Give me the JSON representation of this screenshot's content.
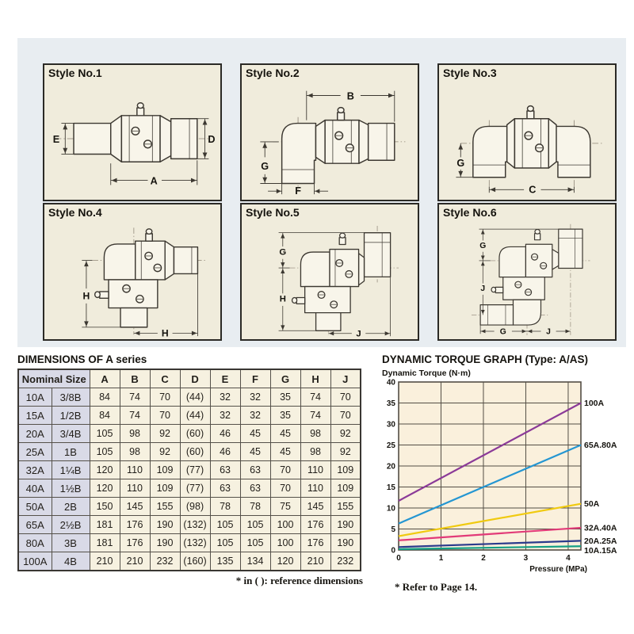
{
  "styles": [
    {
      "label": "Style No.1",
      "dim_left": "E",
      "dim_right": "D",
      "dim_bottom": "A"
    },
    {
      "label": "Style No.2",
      "dim_top": "B",
      "dim_left": "G",
      "dim_bottom": "F"
    },
    {
      "label": "Style No.3",
      "dim_left": "G",
      "dim_bottom": "C"
    },
    {
      "label": "Style No.4",
      "dim_left": "H",
      "dim_bottom": "H"
    },
    {
      "label": "Style No.5",
      "dim_top": "G",
      "dim_left": "H",
      "dim_bottom": "J"
    },
    {
      "label": "Style No.6",
      "dim_top": "G",
      "dim_left": "J",
      "dim_bottom_left": "G",
      "dim_bottom_right": "J"
    }
  ],
  "table": {
    "title": "DIMENSIONS OF A series",
    "nominal_size_header": "Nominal Size",
    "columns": [
      "A",
      "B",
      "C",
      "D",
      "E",
      "F",
      "G",
      "H",
      "J"
    ],
    "rows": [
      [
        "10A",
        "3/8B",
        "84",
        "74",
        "70",
        "(44)",
        "32",
        "32",
        "35",
        "74",
        "70"
      ],
      [
        "15A",
        "1/2B",
        "84",
        "74",
        "70",
        "(44)",
        "32",
        "32",
        "35",
        "74",
        "70"
      ],
      [
        "20A",
        "3/4B",
        "105",
        "98",
        "92",
        "(60)",
        "46",
        "45",
        "45",
        "98",
        "92"
      ],
      [
        "25A",
        "1B",
        "105",
        "98",
        "92",
        "(60)",
        "46",
        "45",
        "45",
        "98",
        "92"
      ],
      [
        "32A",
        "1¼B",
        "120",
        "110",
        "109",
        "(77)",
        "63",
        "63",
        "70",
        "110",
        "109"
      ],
      [
        "40A",
        "1½B",
        "120",
        "110",
        "109",
        "(77)",
        "63",
        "63",
        "70",
        "110",
        "109"
      ],
      [
        "50A",
        "2B",
        "150",
        "145",
        "155",
        "(98)",
        "78",
        "78",
        "75",
        "145",
        "155"
      ],
      [
        "65A",
        "2½B",
        "181",
        "176",
        "190",
        "(132)",
        "105",
        "105",
        "100",
        "176",
        "190"
      ],
      [
        "80A",
        "3B",
        "181",
        "176",
        "190",
        "(132)",
        "105",
        "105",
        "100",
        "176",
        "190"
      ],
      [
        "100A",
        "4B",
        "210",
        "210",
        "232",
        "(160)",
        "135",
        "134",
        "120",
        "210",
        "232"
      ]
    ],
    "footnote": "* in (  ): reference dimensions"
  },
  "chart": {
    "title": "DYNAMIC TORQUE GRAPH (Type: A/AS)",
    "footnote": "* Refer to Page 14."
  },
  "chart_data": {
    "type": "line",
    "title": "DYNAMIC TORQUE GRAPH (Type: A/AS)",
    "ylabel": "Dynamic Torque (N·m)",
    "xlabel": "Pressure (MPa)",
    "xlim": [
      0,
      4.3
    ],
    "ylim": [
      0,
      40
    ],
    "xticks": [
      0,
      1,
      2,
      3,
      4
    ],
    "yticks": [
      0,
      5,
      10,
      15,
      20,
      25,
      30,
      35,
      40
    ],
    "grid": true,
    "legend_position": "right-edge-labels",
    "plot_bg": "#faf0dc",
    "grid_color": "#534e45",
    "series": [
      {
        "name": "100A",
        "color": "#8b3a98",
        "x": [
          0,
          4.3
        ],
        "y": [
          11.7,
          35
        ]
      },
      {
        "name": "65A.80A",
        "color": "#2496d2",
        "x": [
          0,
          4.3
        ],
        "y": [
          6.3,
          25
        ]
      },
      {
        "name": "50A",
        "color": "#f0ca10",
        "x": [
          0,
          4.3
        ],
        "y": [
          3.3,
          11
        ]
      },
      {
        "name": "32A.40A",
        "color": "#e23a78",
        "x": [
          0,
          4.3
        ],
        "y": [
          2.3,
          5.3
        ]
      },
      {
        "name": "20A.25A",
        "color": "#2b3b8c",
        "x": [
          0,
          4.3
        ],
        "y": [
          0.7,
          2.2
        ]
      },
      {
        "name": "10A.15A",
        "color": "#14a085",
        "x": [
          0,
          4.3
        ],
        "y": [
          0.2,
          0.9
        ]
      }
    ]
  }
}
